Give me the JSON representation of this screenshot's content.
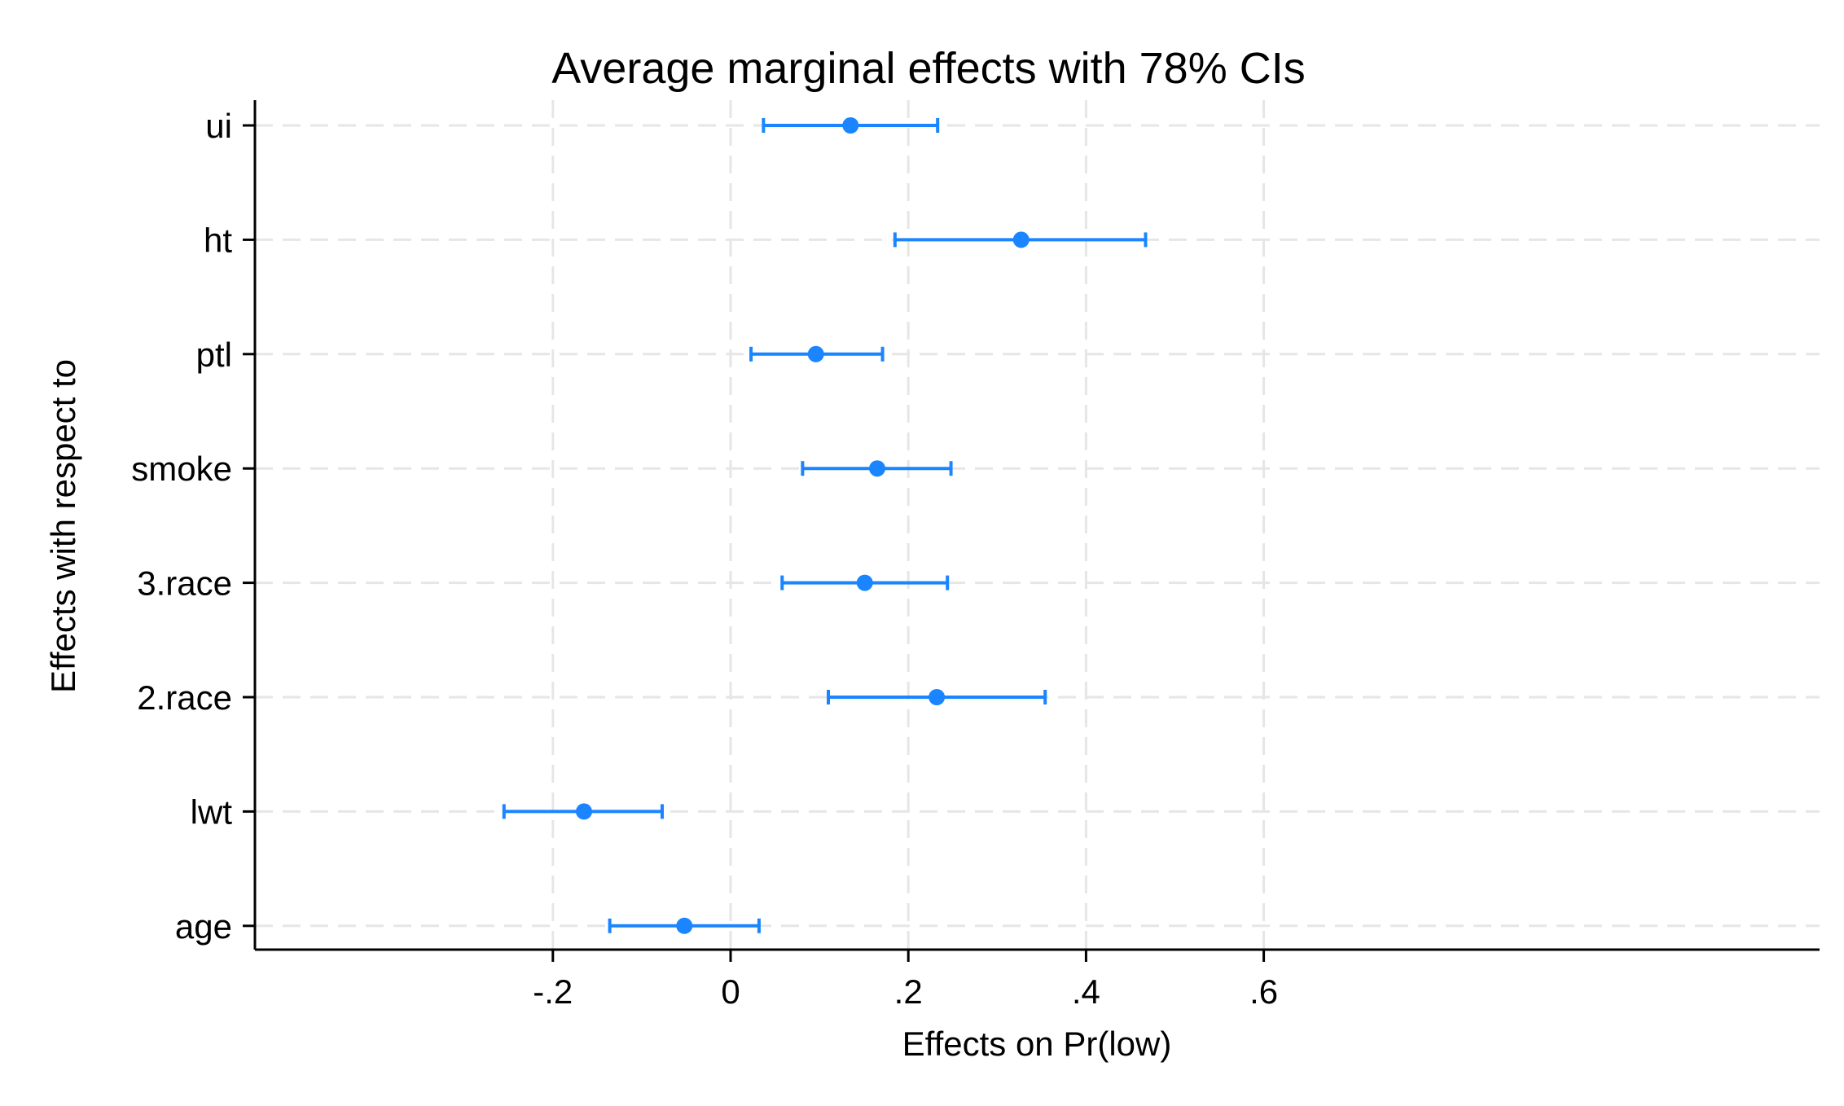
{
  "chart_data": {
    "type": "scatter",
    "subtype": "coefficient-plot-horizontal-ci",
    "title": "Average marginal effects with 78% CIs",
    "xlabel": "Effects on Pr(low)",
    "ylabel": "Effects with respect to",
    "xlim": [
      -0.27,
      0.612
    ],
    "xticks": [
      -0.2,
      0,
      0.2,
      0.4,
      0.6
    ],
    "xtick_labels": [
      "-.2",
      "0",
      ".2",
      ".4",
      ".6"
    ],
    "grid": true,
    "legend": "none",
    "marker_color": "#1a85ff",
    "categories": [
      "ui",
      "ht",
      "ptl",
      "smoke",
      "3.race",
      "2.race",
      "lwt",
      "age"
    ],
    "estimates": [
      0.135,
      0.327,
      0.096,
      0.165,
      0.151,
      0.232,
      -0.165,
      -0.052
    ],
    "ci_lower": [
      0.037,
      0.185,
      0.023,
      0.081,
      0.058,
      0.11,
      -0.255,
      -0.136
    ],
    "ci_upper": [
      0.233,
      0.467,
      0.171,
      0.248,
      0.244,
      0.354,
      -0.077,
      0.032
    ]
  }
}
